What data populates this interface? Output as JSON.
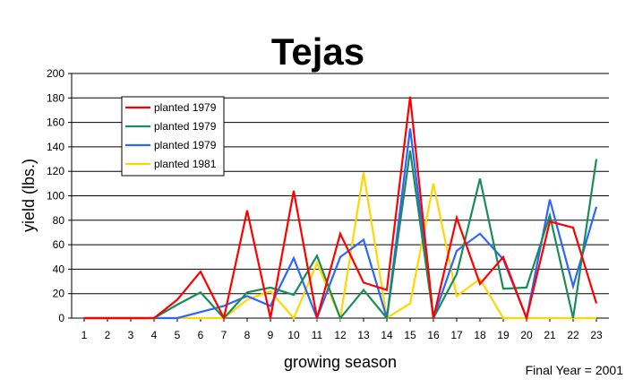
{
  "chart_data": {
    "type": "line",
    "title": "Tejas",
    "xlabel": "growing season",
    "ylabel": "yield (lbs.)",
    "note": "Final Year = 2001",
    "x": [
      1,
      2,
      3,
      4,
      5,
      6,
      7,
      8,
      9,
      10,
      11,
      12,
      13,
      14,
      15,
      16,
      17,
      18,
      19,
      20,
      21,
      22,
      23
    ],
    "xlim": [
      1,
      23
    ],
    "ylim": [
      0,
      200
    ],
    "yticks": [
      0,
      20,
      40,
      60,
      80,
      100,
      120,
      140,
      160,
      180,
      200
    ],
    "grid": "horizontal",
    "legend_position": "top-left",
    "series": [
      {
        "name": "planted 1979",
        "color": "#ff0000",
        "values": [
          0,
          0,
          0,
          0,
          15,
          38,
          0,
          88,
          0,
          104,
          0,
          69,
          29,
          23,
          181,
          0,
          82,
          28,
          50,
          0,
          79,
          74,
          12
        ]
      },
      {
        "name": "planted 1979",
        "color": "#1a8c5a",
        "values": [
          0,
          0,
          0,
          0,
          11,
          21,
          0,
          21,
          25,
          19,
          51,
          0,
          23,
          0,
          137,
          0,
          36,
          114,
          24,
          25,
          84,
          0,
          130
        ]
      },
      {
        "name": "planted 1979",
        "color": "#2a66ff",
        "values": [
          0,
          0,
          0,
          0,
          0,
          5,
          10,
          18,
          10,
          49,
          0,
          50,
          64,
          0,
          155,
          0,
          55,
          69,
          48,
          0,
          97,
          26,
          91
        ]
      },
      {
        "name": "planted 1981",
        "color": "#ffd700",
        "values": [
          0,
          0,
          0,
          0,
          0,
          0,
          0,
          15,
          22,
          0,
          45,
          0,
          119,
          0,
          12,
          110,
          18,
          32,
          0,
          0,
          0,
          0,
          0
        ]
      }
    ]
  }
}
